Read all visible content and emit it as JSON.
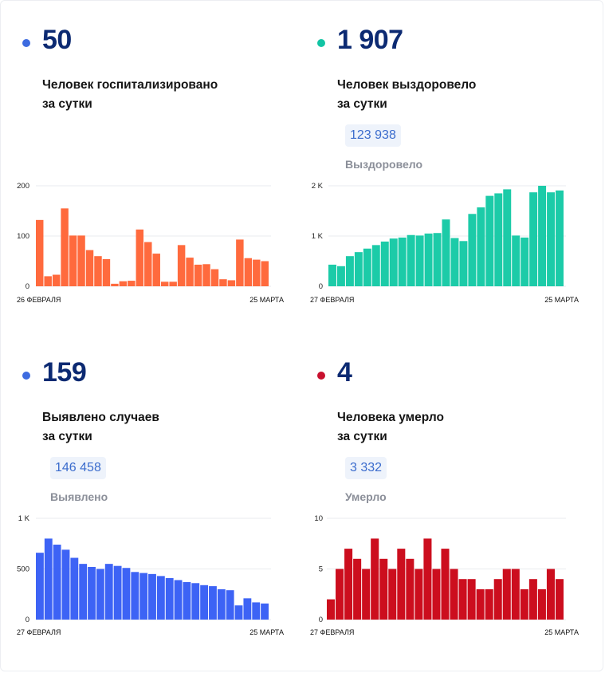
{
  "panels": [
    {
      "id": "hospitalized",
      "accent": "#3d6be0",
      "bar_color": "#ff6a3d",
      "big_number": "50",
      "label_line1": "Человек госпитализировано",
      "label_line2": "за сутки",
      "total": null,
      "total_label": null
    },
    {
      "id": "recovered",
      "accent": "#12c4a4",
      "bar_color": "#1ccba8",
      "big_number": "1 907",
      "label_line1": "Человек выздоровело",
      "label_line2": "за сутки",
      "total": "123 938",
      "total_label": "Выздоровело"
    },
    {
      "id": "cases",
      "accent": "#3d6be0",
      "bar_color": "#3d63f5",
      "big_number": "159",
      "label_line1": "Выявлено случаев",
      "label_line2": "за сутки",
      "total": "146 458",
      "total_label": "Выявлено"
    },
    {
      "id": "deaths",
      "accent": "#c8102e",
      "bar_color": "#cc0e1e",
      "big_number": "4",
      "label_line1": "Человека умерло",
      "label_line2": "за сутки",
      "total": "3 332",
      "total_label": "Умерло"
    }
  ],
  "chart_data": [
    {
      "type": "bar",
      "panel": "hospitalized",
      "x_start_label": "26 ФЕВРАЛЯ",
      "x_end_label": "25 МАРТА",
      "ylim": [
        0,
        200
      ],
      "yticks": [
        0,
        100,
        200
      ],
      "ytick_labels": [
        "0",
        "100",
        "200"
      ],
      "values": [
        132,
        20,
        23,
        155,
        101,
        101,
        72,
        60,
        54,
        5,
        10,
        11,
        113,
        88,
        65,
        9,
        9,
        82,
        57,
        43,
        44,
        34,
        14,
        12,
        93,
        56,
        53,
        50
      ],
      "grid": true
    },
    {
      "type": "bar",
      "panel": "recovered",
      "x_start_label": "27 ФЕВРАЛЯ",
      "x_end_label": "25 МАРТА",
      "ylim": [
        0,
        2000
      ],
      "yticks": [
        0,
        1000,
        2000
      ],
      "ytick_labels": [
        "0",
        "1 K",
        "2 K"
      ],
      "values": [
        430,
        400,
        600,
        680,
        750,
        820,
        890,
        950,
        970,
        1020,
        1010,
        1050,
        1060,
        1330,
        960,
        900,
        1440,
        1570,
        1800,
        1850,
        1930,
        1010,
        970,
        1870,
        2000,
        1870,
        1907
      ],
      "grid": true
    },
    {
      "type": "bar",
      "panel": "cases",
      "x_start_label": "27 ФЕВРАЛЯ",
      "x_end_label": "25 МАРТА",
      "ylim": [
        0,
        1000
      ],
      "yticks": [
        0,
        500,
        1000
      ],
      "ytick_labels": [
        "0",
        "500",
        "1 K"
      ],
      "values": [
        660,
        800,
        740,
        690,
        610,
        550,
        520,
        500,
        550,
        530,
        510,
        470,
        460,
        450,
        430,
        410,
        390,
        370,
        360,
        340,
        330,
        300,
        290,
        140,
        210,
        170,
        159
      ],
      "grid": true
    },
    {
      "type": "bar",
      "panel": "deaths",
      "x_start_label": "27 ФЕВРАЛЯ",
      "x_end_label": "25 МАРТА",
      "ylim": [
        0,
        10
      ],
      "yticks": [
        0,
        5,
        10
      ],
      "ytick_labels": [
        "0",
        "5",
        "10"
      ],
      "values": [
        2,
        5,
        7,
        6,
        5,
        8,
        6,
        5,
        7,
        6,
        5,
        8,
        5,
        7,
        5,
        4,
        4,
        3,
        3,
        4,
        5,
        5,
        3,
        4,
        3,
        5,
        4
      ],
      "grid": true
    }
  ]
}
